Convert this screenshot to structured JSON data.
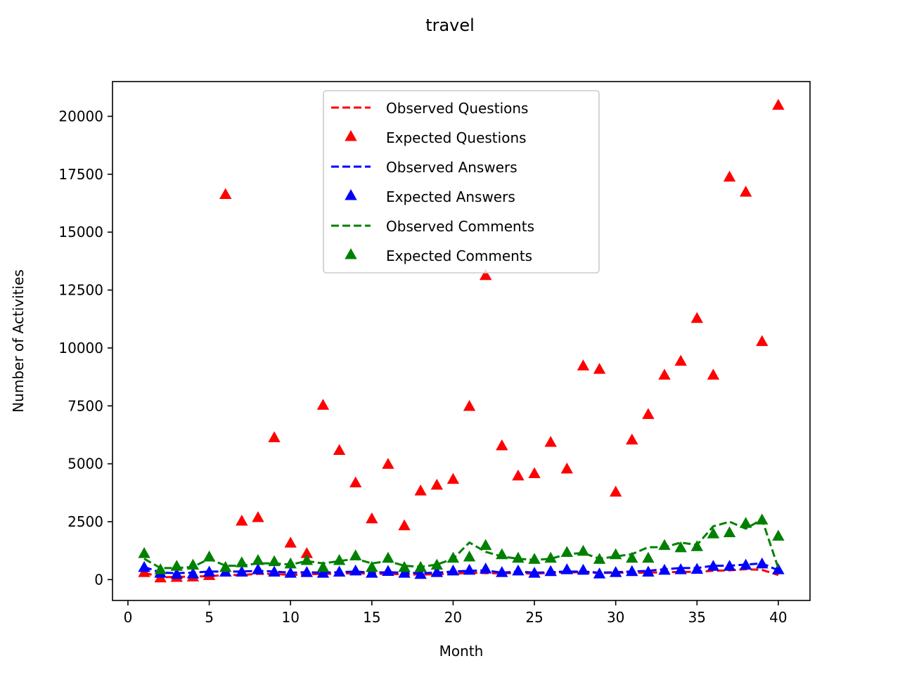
{
  "chart_data": {
    "type": "line",
    "title": "travel",
    "xlabel": "Month",
    "ylabel": "Number of Activities",
    "xlim": [
      -0.95,
      41.95
    ],
    "ylim": [
      -900,
      21500
    ],
    "xticks": [
      0,
      5,
      10,
      15,
      20,
      25,
      30,
      35,
      40
    ],
    "yticks": [
      0,
      2500,
      5000,
      7500,
      10000,
      12500,
      15000,
      17500,
      20000
    ],
    "grid": false,
    "legend_position": "upper-center",
    "x": [
      1,
      2,
      3,
      4,
      5,
      6,
      7,
      8,
      9,
      10,
      11,
      12,
      13,
      14,
      15,
      16,
      17,
      18,
      19,
      20,
      21,
      22,
      23,
      24,
      25,
      26,
      27,
      28,
      29,
      30,
      31,
      32,
      33,
      34,
      35,
      36,
      37,
      38,
      39,
      40
    ],
    "series": [
      {
        "name": "Observed Questions",
        "style": "dashed",
        "color": "#ff0000",
        "values": [
          300,
          100,
          120,
          130,
          150,
          200,
          200,
          250,
          250,
          200,
          230,
          250,
          260,
          280,
          250,
          250,
          230,
          220,
          230,
          250,
          300,
          280,
          270,
          290,
          250,
          300,
          310,
          320,
          280,
          300,
          300,
          300,
          320,
          330,
          340,
          380,
          400,
          450,
          420,
          200
        ]
      },
      {
        "name": "Expected Questions",
        "style": "triangle",
        "color": "#ff0000",
        "values": [
          280,
          50,
          70,
          90,
          150,
          16600,
          2500,
          2650,
          6100,
          1550,
          1100,
          7500,
          5550,
          4150,
          2600,
          4950,
          2300,
          3800,
          4050,
          4300,
          7450,
          13100,
          5750,
          4450,
          4550,
          5900,
          4750,
          9200,
          9050,
          3750,
          6000,
          7100,
          8800,
          9400,
          11250,
          8800,
          17350,
          16700,
          10250,
          20450
        ]
      },
      {
        "name": "Observed Answers",
        "style": "dashed",
        "color": "#0000ff",
        "values": [
          550,
          300,
          280,
          300,
          350,
          350,
          350,
          380,
          350,
          300,
          320,
          300,
          320,
          350,
          300,
          320,
          300,
          280,
          300,
          350,
          380,
          400,
          300,
          350,
          300,
          320,
          350,
          350,
          300,
          320,
          350,
          380,
          450,
          500,
          500,
          600,
          600,
          650,
          700,
          400
        ]
      },
      {
        "name": "Expected Answers",
        "style": "triangle",
        "color": "#0000ff",
        "values": [
          500,
          250,
          200,
          220,
          300,
          300,
          300,
          400,
          300,
          250,
          280,
          250,
          300,
          350,
          250,
          330,
          250,
          200,
          280,
          350,
          380,
          430,
          280,
          350,
          250,
          320,
          400,
          380,
          220,
          280,
          320,
          300,
          380,
          400,
          420,
          550,
          550,
          600,
          650,
          400
        ]
      },
      {
        "name": "Observed Comments",
        "style": "dashed",
        "color": "#008000",
        "values": [
          900,
          500,
          500,
          550,
          900,
          600,
          600,
          700,
          700,
          650,
          800,
          700,
          800,
          900,
          700,
          800,
          600,
          550,
          650,
          900,
          1600,
          1200,
          1000,
          900,
          850,
          900,
          1100,
          1150,
          900,
          1000,
          1100,
          1400,
          1400,
          1600,
          1500,
          2300,
          2500,
          2200,
          2600,
          500
        ]
      },
      {
        "name": "Expected Comments",
        "style": "triangle",
        "color": "#008000",
        "values": [
          1100,
          400,
          550,
          600,
          950,
          500,
          700,
          800,
          750,
          650,
          800,
          500,
          800,
          1000,
          500,
          900,
          500,
          500,
          600,
          900,
          950,
          1450,
          1050,
          900,
          850,
          900,
          1150,
          1200,
          850,
          1050,
          900,
          900,
          1450,
          1350,
          1400,
          1950,
          2000,
          2400,
          2550,
          1850
        ]
      }
    ]
  }
}
